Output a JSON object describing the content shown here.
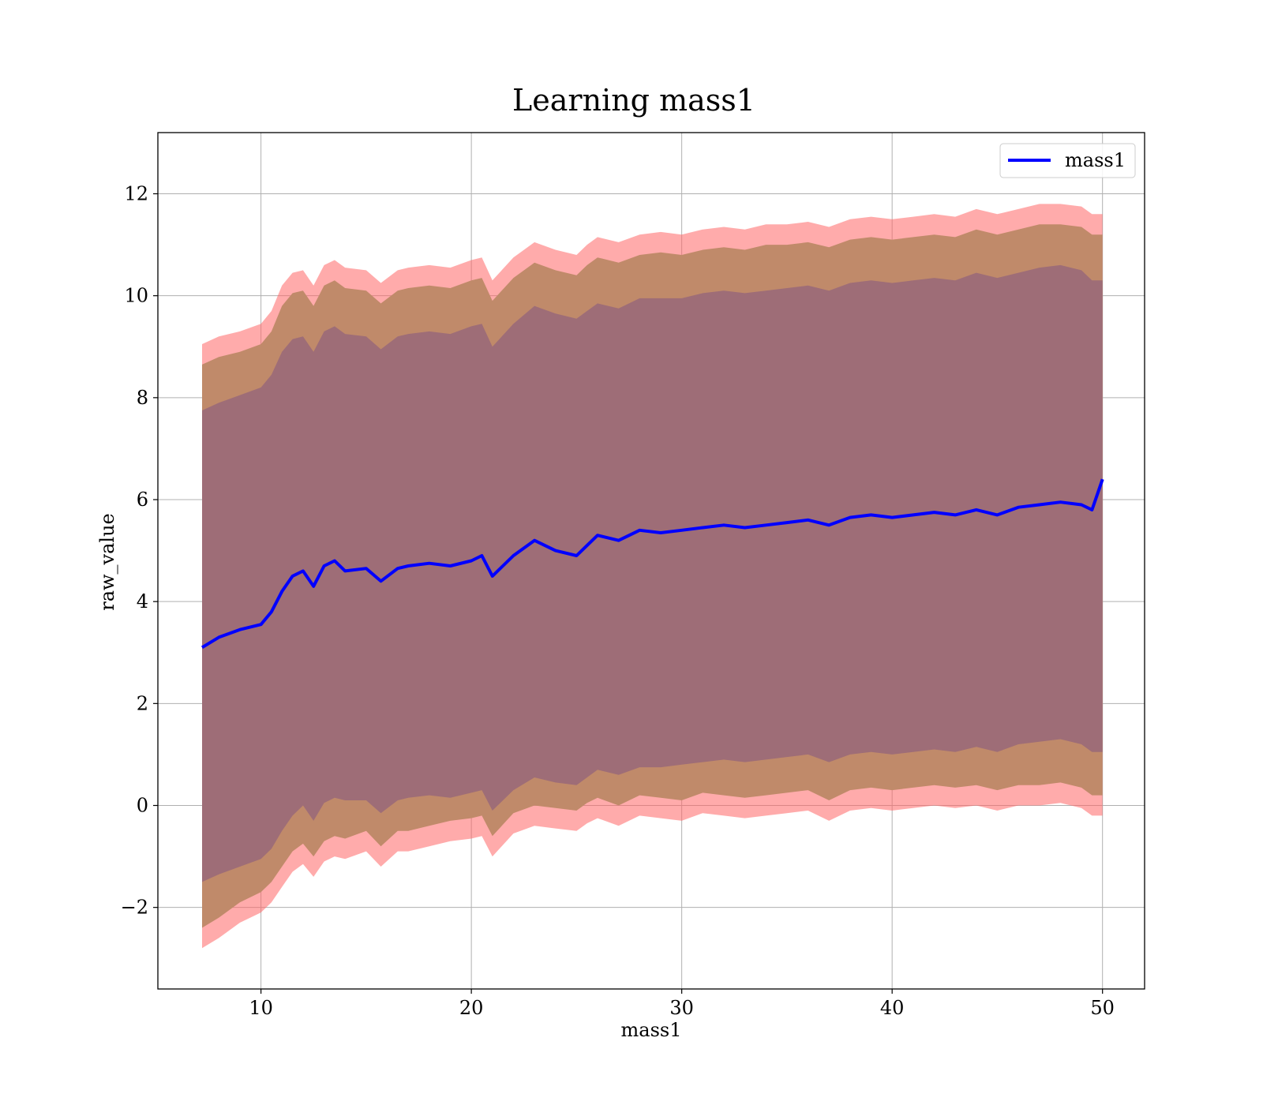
{
  "chart_data": {
    "type": "line",
    "title": "Learning mass1",
    "xlabel": "mass1",
    "ylabel": "raw_value",
    "xlim": [
      5.1,
      52.0
    ],
    "ylim": [
      -3.6,
      13.2
    ],
    "x_ticks": [
      10,
      20,
      30,
      40,
      50
    ],
    "x_tick_labels": [
      "10",
      "20",
      "30",
      "40",
      "50"
    ],
    "y_ticks": [
      -2,
      0,
      2,
      4,
      6,
      8,
      10,
      12
    ],
    "y_tick_labels": [
      "−2",
      "0",
      "2",
      "4",
      "6",
      "8",
      "10",
      "12"
    ],
    "grid": true,
    "legend": {
      "position": "top-right",
      "entries": [
        {
          "label": "mass1",
          "color": "#0000ff"
        }
      ]
    },
    "series": [
      {
        "name": "mass1",
        "color": "#0000ff",
        "x": [
          7.2,
          8.0,
          9.0,
          10.0,
          10.5,
          11.0,
          11.5,
          12.0,
          12.5,
          13.0,
          13.5,
          14.0,
          15.0,
          15.7,
          16.5,
          17.0,
          18.0,
          19.0,
          20.0,
          20.5,
          21.0,
          22.0,
          23.0,
          24.0,
          25.0,
          25.5,
          26.0,
          27.0,
          28.0,
          29.0,
          30.0,
          31.0,
          32.0,
          33.0,
          34.0,
          35.0,
          36.0,
          37.0,
          38.0,
          39.0,
          40.0,
          41.0,
          42.0,
          43.0,
          44.0,
          45.0,
          46.0,
          47.0,
          48.0,
          49.0,
          49.5,
          50.0
        ],
        "values": [
          3.1,
          3.3,
          3.45,
          3.55,
          3.8,
          4.2,
          4.5,
          4.6,
          4.3,
          4.7,
          4.8,
          4.6,
          4.65,
          4.4,
          4.65,
          4.7,
          4.75,
          4.7,
          4.8,
          4.9,
          4.5,
          4.9,
          5.2,
          5.0,
          4.9,
          5.1,
          5.3,
          5.2,
          5.4,
          5.35,
          5.4,
          5.45,
          5.5,
          5.45,
          5.5,
          5.55,
          5.6,
          5.5,
          5.65,
          5.7,
          5.65,
          5.7,
          5.75,
          5.7,
          5.8,
          5.7,
          5.85,
          5.9,
          5.95,
          5.9,
          5.8,
          6.4
        ]
      }
    ],
    "bands": [
      {
        "color": "#ff6666",
        "lower": [
          -2.8,
          -2.6,
          -2.3,
          -2.1,
          -1.9,
          -1.6,
          -1.3,
          -1.15,
          -1.4,
          -1.1,
          -1.0,
          -1.05,
          -0.9,
          -1.2,
          -0.9,
          -0.9,
          -0.8,
          -0.7,
          -0.65,
          -0.6,
          -1.0,
          -0.55,
          -0.4,
          -0.45,
          -0.5,
          -0.35,
          -0.25,
          -0.4,
          -0.2,
          -0.25,
          -0.3,
          -0.15,
          -0.2,
          -0.25,
          -0.2,
          -0.15,
          -0.1,
          -0.3,
          -0.1,
          -0.05,
          -0.1,
          -0.05,
          0.0,
          -0.05,
          0.0,
          -0.1,
          0.0,
          0.0,
          0.05,
          -0.05,
          -0.2,
          -0.2
        ],
        "upper": [
          9.05,
          9.2,
          9.3,
          9.45,
          9.7,
          10.2,
          10.45,
          10.5,
          10.2,
          10.6,
          10.7,
          10.55,
          10.5,
          10.25,
          10.5,
          10.55,
          10.6,
          10.55,
          10.7,
          10.75,
          10.3,
          10.75,
          11.05,
          10.9,
          10.8,
          11.0,
          11.15,
          11.05,
          11.2,
          11.25,
          11.2,
          11.3,
          11.35,
          11.3,
          11.4,
          11.4,
          11.45,
          11.35,
          11.5,
          11.55,
          11.5,
          11.55,
          11.6,
          11.55,
          11.7,
          11.6,
          11.7,
          11.8,
          11.8,
          11.75,
          11.6,
          11.6
        ]
      },
      {
        "color": "#c08a6a",
        "lower": [
          -2.4,
          -2.2,
          -1.9,
          -1.7,
          -1.5,
          -1.2,
          -0.9,
          -0.75,
          -1.0,
          -0.7,
          -0.6,
          -0.65,
          -0.5,
          -0.8,
          -0.5,
          -0.5,
          -0.4,
          -0.3,
          -0.25,
          -0.2,
          -0.6,
          -0.15,
          0.0,
          -0.05,
          -0.1,
          0.05,
          0.15,
          0.0,
          0.2,
          0.15,
          0.1,
          0.25,
          0.2,
          0.15,
          0.2,
          0.25,
          0.3,
          0.1,
          0.3,
          0.35,
          0.3,
          0.35,
          0.4,
          0.35,
          0.4,
          0.3,
          0.4,
          0.4,
          0.45,
          0.35,
          0.2,
          0.2
        ],
        "upper": [
          8.65,
          8.8,
          8.9,
          9.05,
          9.3,
          9.8,
          10.05,
          10.1,
          9.8,
          10.2,
          10.3,
          10.15,
          10.1,
          9.85,
          10.1,
          10.15,
          10.2,
          10.15,
          10.3,
          10.35,
          9.9,
          10.35,
          10.65,
          10.5,
          10.4,
          10.6,
          10.75,
          10.65,
          10.8,
          10.85,
          10.8,
          10.9,
          10.95,
          10.9,
          11.0,
          11.0,
          11.05,
          10.95,
          11.1,
          11.15,
          11.1,
          11.15,
          11.2,
          11.15,
          11.3,
          11.2,
          11.3,
          11.4,
          11.4,
          11.35,
          11.2,
          11.2
        ]
      },
      {
        "color": "#9e6d77",
        "lower": [
          -1.5,
          -1.35,
          -1.2,
          -1.05,
          -0.85,
          -0.5,
          -0.2,
          0.0,
          -0.3,
          0.05,
          0.15,
          0.1,
          0.1,
          -0.15,
          0.1,
          0.15,
          0.2,
          0.15,
          0.25,
          0.3,
          -0.1,
          0.3,
          0.55,
          0.45,
          0.4,
          0.55,
          0.7,
          0.6,
          0.75,
          0.75,
          0.8,
          0.85,
          0.9,
          0.85,
          0.9,
          0.95,
          1.0,
          0.85,
          1.0,
          1.05,
          1.0,
          1.05,
          1.1,
          1.05,
          1.15,
          1.05,
          1.2,
          1.25,
          1.3,
          1.2,
          1.05,
          1.05
        ],
        "upper": [
          7.75,
          7.9,
          8.05,
          8.2,
          8.45,
          8.9,
          9.15,
          9.2,
          8.9,
          9.3,
          9.4,
          9.25,
          9.2,
          8.95,
          9.2,
          9.25,
          9.3,
          9.25,
          9.4,
          9.45,
          9.0,
          9.45,
          9.8,
          9.65,
          9.55,
          9.7,
          9.85,
          9.75,
          9.95,
          9.95,
          9.95,
          10.05,
          10.1,
          10.05,
          10.1,
          10.15,
          10.2,
          10.1,
          10.25,
          10.3,
          10.25,
          10.3,
          10.35,
          10.3,
          10.45,
          10.35,
          10.45,
          10.55,
          10.6,
          10.5,
          10.3,
          10.3
        ]
      }
    ]
  }
}
